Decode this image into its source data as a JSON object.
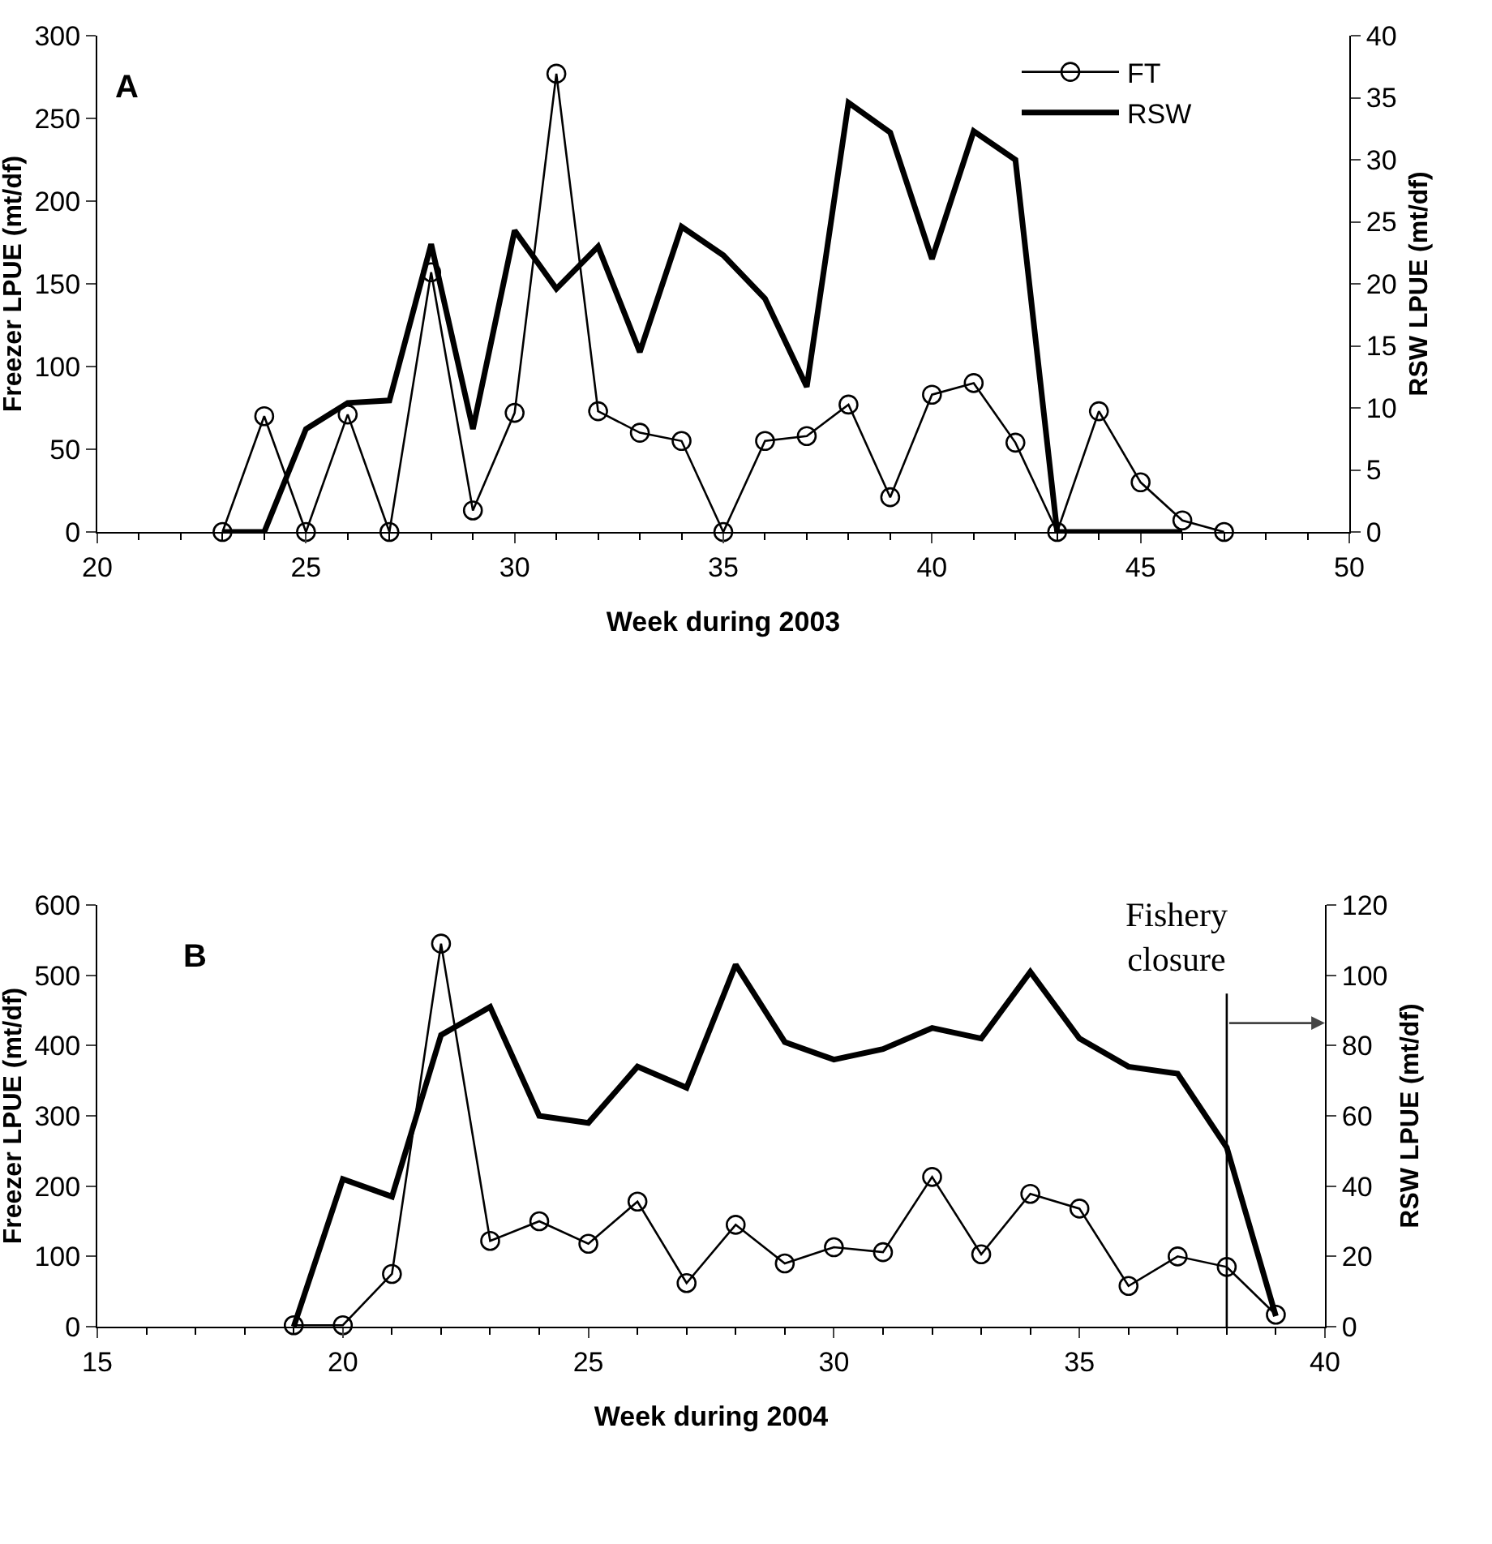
{
  "chart_data": [
    {
      "type": "line",
      "xlabel": "Week during 2003",
      "ylabel": "Freezer LPUE (mt/df)",
      "y2label": "RSW LPUE (mt/df)",
      "annotations": [
        "A"
      ],
      "xlim": [
        20,
        50
      ],
      "xticks": [
        20,
        25,
        30,
        35,
        40,
        45,
        50
      ],
      "ylim": [
        0,
        300
      ],
      "yticks": [
        0,
        50,
        100,
        150,
        200,
        250,
        300
      ],
      "y2lim": [
        0,
        40
      ],
      "y2ticks": [
        0,
        5,
        10,
        15,
        20,
        25,
        30,
        35,
        40
      ],
      "grid": false,
      "legend": "top right",
      "series": [
        {
          "name": "FT",
          "color": "#000000",
          "marker": "circle",
          "x": [
            23,
            24,
            25,
            26,
            27,
            28,
            29,
            30,
            31,
            32,
            33,
            34,
            35,
            36,
            37,
            38,
            39,
            40,
            41,
            42,
            43,
            44,
            45,
            46,
            47
          ],
          "values": [
            0,
            70,
            0,
            71,
            0,
            157,
            13,
            72,
            277,
            73,
            60,
            55,
            0,
            55,
            58,
            77,
            21,
            83,
            90,
            54,
            0,
            73,
            30,
            7,
            0
          ]
        },
        {
          "name": "RSW",
          "color": "#000000",
          "marker": "none",
          "axis": "y2",
          "x": [
            23,
            24,
            25,
            26,
            27,
            28,
            29,
            30,
            31,
            32,
            33,
            34,
            35,
            36,
            37,
            38,
            39,
            40,
            41,
            42,
            43,
            44,
            45,
            46
          ],
          "values": [
            0,
            0,
            8.3,
            10.4,
            10.6,
            23.2,
            8.3,
            24.3,
            19.6,
            23,
            14.5,
            24.6,
            22.3,
            18.8,
            11.7,
            34.6,
            32.2,
            22,
            32.3,
            30,
            0,
            0,
            0,
            0
          ]
        }
      ]
    },
    {
      "type": "line",
      "xlabel": "Week during 2004",
      "ylabel": "Freezer LPUE (mt/df)",
      "y2label": "RSW LPUE (mt/df)",
      "annotations": [
        "B"
      ],
      "xlim": [
        15,
        40
      ],
      "xticks": [
        15,
        20,
        25,
        30,
        35,
        40
      ],
      "ylim": [
        0,
        600
      ],
      "yticks": [
        0,
        100,
        200,
        300,
        400,
        500,
        600
      ],
      "y2lim": [
        0,
        120
      ],
      "y2ticks": [
        0,
        20,
        40,
        60,
        80,
        100,
        120
      ],
      "grid": false,
      "legend": false,
      "ref_lines": [
        {
          "axis": "x",
          "value": 38,
          "label": "Fishery closure"
        }
      ],
      "series": [
        {
          "color": "#000000",
          "marker": "circle",
          "x": [
            19,
            20,
            21,
            22,
            23,
            24,
            25,
            26,
            27,
            28,
            29,
            30,
            31,
            32,
            33,
            34,
            35,
            36,
            37,
            38,
            39
          ],
          "values": [
            2,
            2,
            75,
            545,
            122,
            150,
            118,
            178,
            62,
            145,
            90,
            113,
            106,
            213,
            103,
            189,
            168,
            58,
            100,
            85,
            17
          ]
        },
        {
          "color": "#000000",
          "marker": "none",
          "axis": "y2",
          "x": [
            19,
            20,
            21,
            22,
            23,
            24,
            25,
            26,
            27,
            28,
            29,
            30,
            31,
            32,
            33,
            34,
            35,
            36,
            37,
            38,
            39
          ],
          "values": [
            0,
            42,
            37,
            83,
            91,
            60,
            58,
            74,
            68,
            103,
            81,
            76,
            79,
            85,
            82,
            101,
            82,
            74,
            72,
            51,
            3
          ]
        }
      ]
    }
  ]
}
